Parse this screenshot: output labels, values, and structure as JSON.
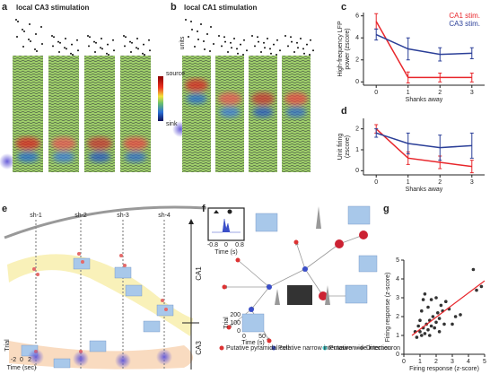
{
  "panel_labels": [
    "a",
    "b",
    "c",
    "d",
    "e",
    "f",
    "g"
  ],
  "panel_a": {
    "title": "local CA3 stimulation",
    "colorbar": [
      "source",
      "sink"
    ]
  },
  "panel_b": {
    "title": "local CA1 stimulation",
    "units_label": "units"
  },
  "panel_e": {
    "shanks": [
      "sh-1",
      "sh-2",
      "sh-3",
      "sh-4"
    ],
    "regions": [
      "CA1",
      "CA3"
    ],
    "trial": "Trial",
    "time": "Time (sec)",
    "time_ticks": [
      "-2",
      "0",
      "2"
    ]
  },
  "panel_f": {
    "inset_xlabel": "Time (s)",
    "inset_ticks": [
      "-0.8",
      "0",
      "0.8"
    ],
    "raster_ylabel": "Trial",
    "raster_yticks": [
      "200",
      "100",
      "0"
    ],
    "raster_xticks": [
      "0",
      "50"
    ],
    "raster_xlabel": "Time (s)",
    "legend": [
      "Putative pyramidal cell",
      "Putative narrow interneuron",
      "Putative wide interneuron",
      "Direction"
    ]
  },
  "chart_data": [
    {
      "type": "line",
      "xlabel": "Shanks away",
      "ylabel": [
        "High-frequency LFP",
        "power (zscore)"
      ],
      "x": [
        0,
        1,
        2,
        3
      ],
      "xlim": [
        -0.4,
        3.4
      ],
      "xticks": [
        0,
        1,
        2,
        3
      ],
      "ylim": [
        -0.3,
        6.3
      ],
      "yticks": [
        0,
        2,
        4,
        6
      ],
      "legend": "upper right",
      "series": [
        {
          "name": "CA1 stim.",
          "color": "#e8262b",
          "values": [
            5.5,
            0.4,
            0.4,
            0.4
          ],
          "errors": [
            0.7,
            0.5,
            0.4,
            0.4
          ]
        },
        {
          "name": "CA3 stim.",
          "color": "#2b3f98",
          "values": [
            4.3,
            3.0,
            2.5,
            2.6
          ],
          "errors": [
            0.5,
            1.0,
            0.6,
            0.5
          ]
        }
      ]
    },
    {
      "type": "line",
      "xlabel": "Shanks away",
      "ylabel": [
        "Unit firing",
        "(zscore)"
      ],
      "x": [
        0,
        1,
        2,
        3
      ],
      "xlim": [
        -0.4,
        3.4
      ],
      "xticks": [
        0,
        1,
        2,
        3
      ],
      "ylim": [
        -0.2,
        2.5
      ],
      "yticks": [
        0,
        1,
        2
      ],
      "series": [
        {
          "color": "#e8262b",
          "values": [
            2.0,
            0.6,
            0.4,
            0.2
          ],
          "errors": [
            0.2,
            0.3,
            0.3,
            0.3
          ]
        },
        {
          "color": "#2b3f98",
          "values": [
            1.8,
            1.3,
            1.1,
            1.2
          ],
          "errors": [
            0.2,
            0.5,
            0.6,
            0.6
          ]
        }
      ]
    },
    {
      "type": "scatter",
      "xlabel": "Firing response (z-score)",
      "ylabel": [
        "Firing response (z-score)"
      ],
      "xlim": [
        0,
        5
      ],
      "xticks": [
        0,
        1,
        2,
        3,
        4,
        5
      ],
      "ylim": [
        0,
        5
      ],
      "yticks": [
        0,
        1,
        2,
        3,
        4,
        5
      ],
      "color": "#333333",
      "fit_color": "#e8262b",
      "x": [
        0.8,
        1.0,
        1.1,
        1.2,
        1.3,
        1.4,
        1.5,
        1.6,
        1.7,
        1.8,
        1.9,
        2.0,
        2.1,
        2.2,
        2.3,
        2.4,
        2.5,
        2.6,
        1.5,
        1.2,
        2.0,
        1.0,
        0.9,
        3.0,
        3.2,
        2.8,
        1.3,
        1.7,
        0.7,
        1.1,
        4.3,
        4.5,
        4.8,
        3.5,
        2.2,
        1.6
      ],
      "y": [
        0.9,
        1.2,
        1.0,
        1.4,
        1.1,
        1.6,
        1.3,
        1.8,
        1.5,
        2.0,
        1.4,
        1.7,
        2.2,
        1.9,
        2.6,
        2.3,
        1.6,
        2.8,
        2.5,
        2.9,
        3.0,
        1.8,
        1.5,
        1.6,
        2.0,
        2.4,
        3.2,
        2.9,
        1.2,
        2.3,
        4.5,
        3.4,
        3.6,
        2.1,
        1.2,
        1.0
      ],
      "fit": {
        "x": [
          0.5,
          5
        ],
        "y": [
          1.0,
          3.9
        ]
      }
    }
  ]
}
